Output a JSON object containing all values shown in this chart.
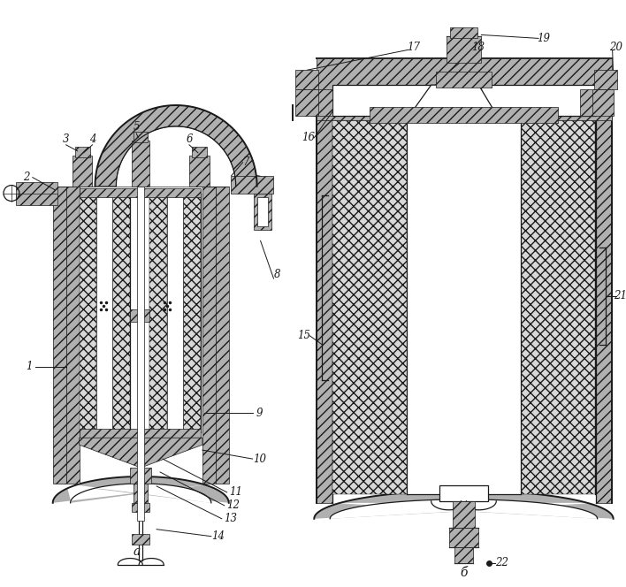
{
  "bg_color": "#ffffff",
  "line_color": "#1a1a1a",
  "hatch_gray": "#b0b0b0",
  "light_gray": "#d8d8d8",
  "white": "#ffffff",
  "figsize": [
    7.08,
    6.64
  ],
  "dpi": 100
}
